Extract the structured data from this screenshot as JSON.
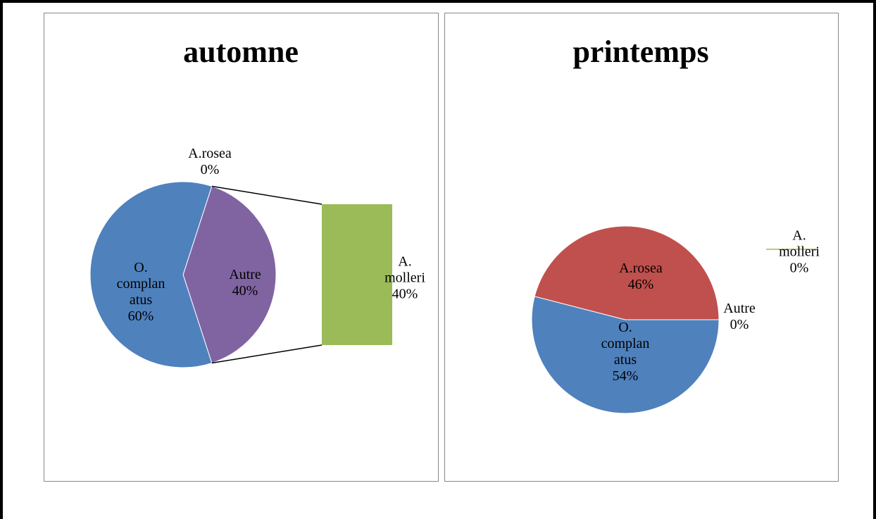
{
  "chart_data": [
    {
      "type": "bar-of-pie",
      "title": "automne",
      "categories": [
        "O. complanatus"
      ],
      "values": [
        60
      ],
      "value_labels": [
        "60%"
      ],
      "colors": [
        "#4f81bd"
      ],
      "other": {
        "label": "Autre",
        "value": 40,
        "value_label": "40%",
        "color": "#8064a2"
      },
      "secondary": {
        "categories": [
          "A.rosea",
          "A. molleri"
        ],
        "values": [
          0,
          40
        ],
        "value_labels": [
          "0%",
          "40%"
        ],
        "colors": [
          "#c0504d",
          "#9bbb59"
        ]
      }
    },
    {
      "type": "pie",
      "title": "printemps",
      "categories": [
        "O. complanatus",
        "A.rosea",
        "Autre",
        "A. molleri"
      ],
      "values": [
        54,
        46,
        0,
        0
      ],
      "value_labels": [
        "54%",
        "46%",
        "0%",
        "0%"
      ],
      "colors": [
        "#4f81bd",
        "#c0504d",
        "#8064a2",
        "#9bbb59"
      ]
    }
  ]
}
